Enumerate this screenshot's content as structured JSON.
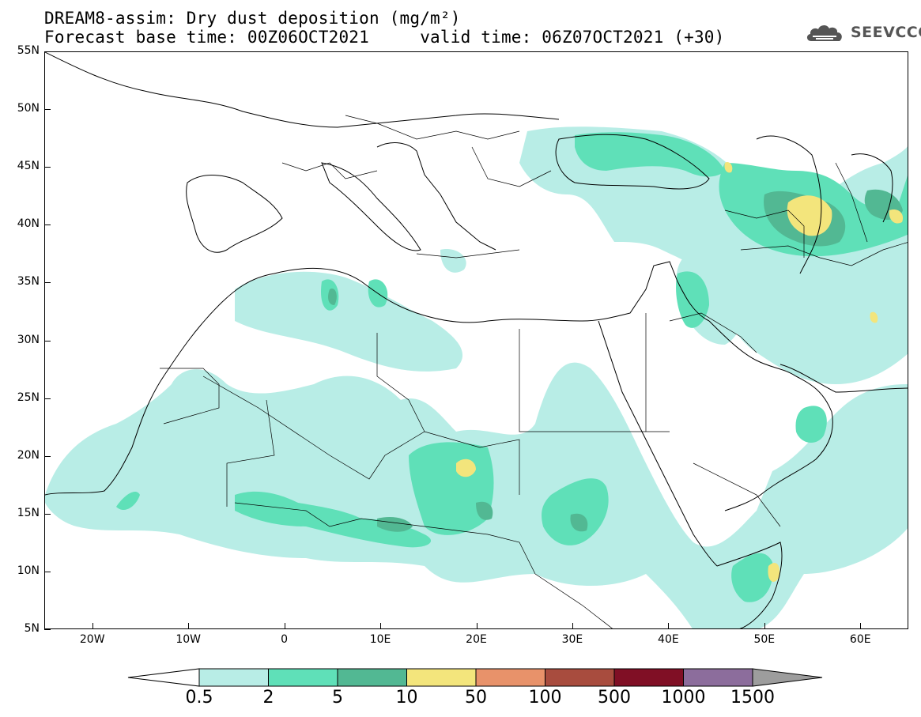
{
  "title": {
    "line1": "DREAM8-assim: Dry dust deposition (mg/m²)",
    "line2": "Forecast base time: 00Z06OCT2021     valid time: 06Z07OCT2021 (+30)"
  },
  "logo": {
    "text": "SEEVCCC",
    "icon": "cloud-icon"
  },
  "map": {
    "lat_ticks": [
      "55N",
      "50N",
      "45N",
      "40N",
      "35N",
      "30N",
      "25N",
      "20N",
      "15N",
      "10N",
      "5N"
    ],
    "lon_ticks": [
      "20W",
      "10W",
      "0",
      "10E",
      "20E",
      "30E",
      "40E",
      "50E",
      "60E"
    ],
    "lat_range": [
      5,
      55
    ],
    "lon_range": [
      -25,
      65
    ]
  },
  "colorbar": {
    "levels": [
      "0.5",
      "2",
      "5",
      "10",
      "50",
      "100",
      "500",
      "1000",
      "1500"
    ],
    "colors": [
      "#b8ede6",
      "#5fe0b8",
      "#52b893",
      "#f3e57c",
      "#e8926a",
      "#a84c3e",
      "#800f25",
      "#8c6d9c"
    ],
    "over_color": "#9d9d9d",
    "under_color": "#ffffff"
  }
}
